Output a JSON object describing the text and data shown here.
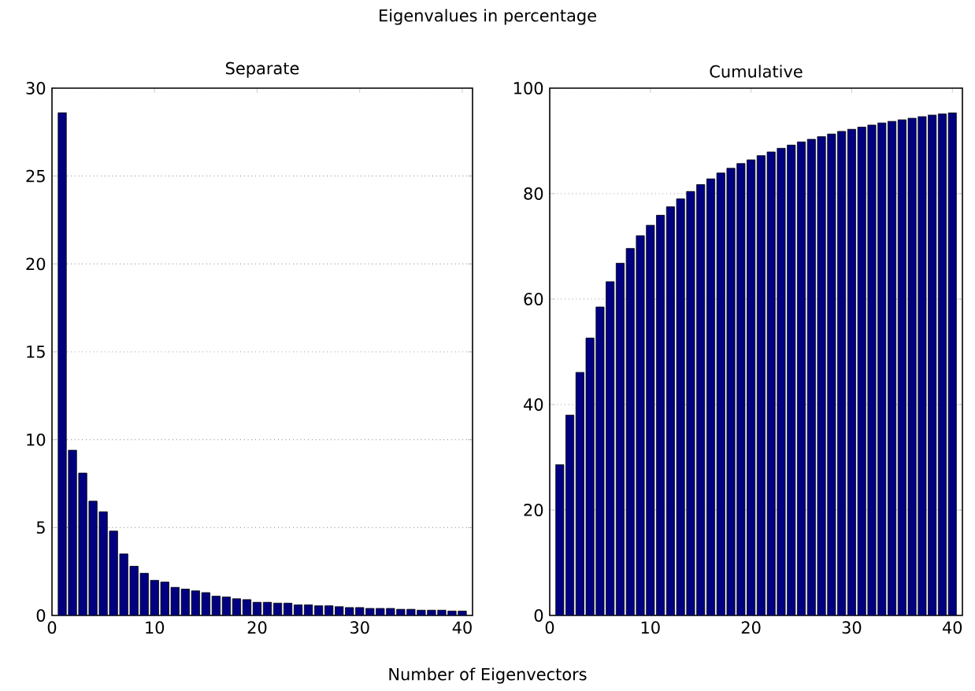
{
  "chart_data": [
    {
      "type": "bar",
      "title": "Separate",
      "annotations": [
        "Eigenvalues in percentage"
      ],
      "xlabel": "Number of Eigenvectors",
      "x": [
        1,
        2,
        3,
        4,
        5,
        6,
        7,
        8,
        9,
        10,
        11,
        12,
        13,
        14,
        15,
        16,
        17,
        18,
        19,
        20,
        21,
        22,
        23,
        24,
        25,
        26,
        27,
        28,
        29,
        30,
        31,
        32,
        33,
        34,
        35,
        36,
        37,
        38,
        39,
        40
      ],
      "values": [
        28.6,
        9.4,
        8.1,
        6.5,
        5.9,
        4.8,
        3.5,
        2.8,
        2.4,
        2.0,
        1.9,
        1.6,
        1.5,
        1.4,
        1.3,
        1.1,
        1.05,
        0.95,
        0.9,
        0.75,
        0.75,
        0.7,
        0.7,
        0.6,
        0.6,
        0.55,
        0.55,
        0.5,
        0.45,
        0.45,
        0.4,
        0.4,
        0.4,
        0.35,
        0.35,
        0.3,
        0.3,
        0.3,
        0.25,
        0.25
      ],
      "color": "#000080",
      "xlim": [
        0,
        41
      ],
      "xticks": [
        0,
        10,
        20,
        30,
        40
      ],
      "ylim": [
        0,
        30
      ],
      "yticks": [
        0,
        5,
        10,
        15,
        20,
        25,
        30
      ],
      "grid": "y"
    },
    {
      "type": "bar",
      "title": "Cumulative",
      "x": [
        1,
        2,
        3,
        4,
        5,
        6,
        7,
        8,
        9,
        10,
        11,
        12,
        13,
        14,
        15,
        16,
        17,
        18,
        19,
        20,
        21,
        22,
        23,
        24,
        25,
        26,
        27,
        28,
        29,
        30,
        31,
        32,
        33,
        34,
        35,
        36,
        37,
        38,
        39,
        40
      ],
      "values": [
        28.6,
        38,
        46.1,
        52.6,
        58.5,
        63.3,
        66.8,
        69.6,
        72,
        74,
        75.9,
        77.5,
        79,
        80.4,
        81.7,
        82.8,
        83.9,
        84.8,
        85.7,
        86.4,
        87.2,
        87.9,
        88.6,
        89.2,
        89.8,
        90.3,
        90.8,
        91.3,
        91.8,
        92.2,
        92.6,
        93.0,
        93.4,
        93.7,
        94.0,
        94.3,
        94.6,
        94.9,
        95.1,
        95.3
      ],
      "color": "#000080",
      "xlim": [
        0,
        41
      ],
      "xticks": [
        0,
        10,
        20,
        30,
        40
      ],
      "ylim": [
        0,
        100
      ],
      "yticks": [
        0,
        20,
        40,
        60,
        80,
        100
      ],
      "grid": "y"
    }
  ]
}
